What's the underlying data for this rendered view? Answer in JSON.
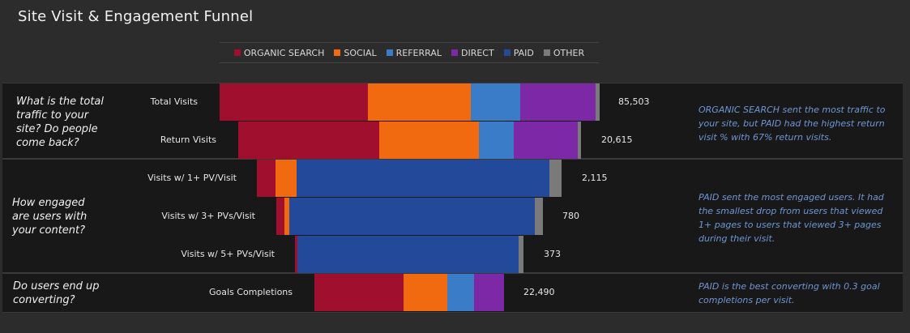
{
  "title": "Site Visit & Engagement Funnel",
  "colors": {
    "ORGANIC SEARCH": "#a10f2f",
    "SOCIAL": "#f26a10",
    "REFERRAL": "#3a7cc8",
    "DIRECT": "#7d28a6",
    "PAID": "#234a9a",
    "OTHER": "#7a7a7a"
  },
  "legend": [
    "ORGANIC SEARCH",
    "SOCIAL",
    "REFERRAL",
    "DIRECT",
    "PAID",
    "OTHER"
  ],
  "sections": [
    {
      "question": "What is the total traffic to your site? Do people come back?",
      "insight": "ORGANIC SEARCH sent the most traffic to your site, but PAID had the highest return visit % with 67% return visits."
    },
    {
      "question": "How engaged are users with your content?",
      "insight": "PAID sent the most engaged users. It had the smallest drop from users that viewed 1+ pages to users that viewed 3+ pages during their visit."
    },
    {
      "question": "Do users end up converting?",
      "insight": "PAID is the best converting with 0.3 goal completions per visit."
    }
  ],
  "chart_data": {
    "type": "bar",
    "title": "Site Visit & Engagement Funnel",
    "categories": [
      "Total Visits",
      "Return Visits",
      "Visits w/ 1+ PV/Visit",
      "Visits w/ 3+ PVs/Visit",
      "Visits w/ 5+ PVs/Visit",
      "Goals Completions"
    ],
    "totals": [
      "85,503",
      "20,615",
      "2,115",
      "780",
      "373",
      "22,490"
    ],
    "series": [
      {
        "name": "ORGANIC SEARCH",
        "values": [
          39,
          40,
          6,
          3,
          1,
          47
        ]
      },
      {
        "name": "SOCIAL",
        "values": [
          27,
          28,
          7,
          2,
          0,
          23
        ]
      },
      {
        "name": "REFERRAL",
        "values": [
          13,
          10,
          0,
          0,
          0,
          14
        ]
      },
      {
        "name": "DIRECT",
        "values": [
          20,
          18,
          0,
          0,
          0,
          16
        ]
      },
      {
        "name": "PAID",
        "values": [
          0,
          0,
          83,
          92,
          97,
          0
        ]
      },
      {
        "name": "OTHER",
        "values": [
          1,
          1,
          4,
          3,
          2,
          0
        ]
      }
    ]
  }
}
